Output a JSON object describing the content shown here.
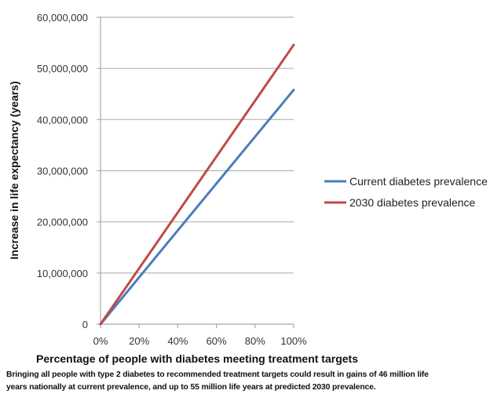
{
  "chart_data": {
    "type": "line",
    "title": "",
    "xlabel": "Percentage of people with diabetes meeting treatment targets",
    "ylabel": "Increase in life expectancy (years)",
    "x": [
      0,
      100
    ],
    "x_tick_labels": [
      "0%",
      "20%",
      "40%",
      "60%",
      "80%",
      "100%"
    ],
    "x_ticks": [
      0,
      20,
      40,
      60,
      80,
      100
    ],
    "xlim": [
      0,
      100
    ],
    "y_tick_labels": [
      "0",
      "10,000,000",
      "20,000,000",
      "30,000,000",
      "40,000,000",
      "50,000,000",
      "60,000,000"
    ],
    "y_ticks": [
      0,
      10000000,
      20000000,
      30000000,
      40000000,
      50000000,
      60000000
    ],
    "ylim": [
      0,
      60000000
    ],
    "grid": true,
    "legend_position": "right",
    "series": [
      {
        "name": "Current diabetes prevalence",
        "color": "#4a7ebb",
        "values": [
          0,
          45800000
        ]
      },
      {
        "name": "2030 diabetes prevalence",
        "color": "#be4b48",
        "values": [
          0,
          54600000
        ]
      }
    ]
  },
  "caption": {
    "line1": "Bringing all people with type 2 diabetes to recommended treatment targets could result in gains of 46 million life",
    "line2": "years nationally at current prevalence, and up to 55 million life years at predicted 2030 prevalence."
  },
  "colors": {
    "grid": "#b3b3b3",
    "axis": "#a6a6a6"
  }
}
